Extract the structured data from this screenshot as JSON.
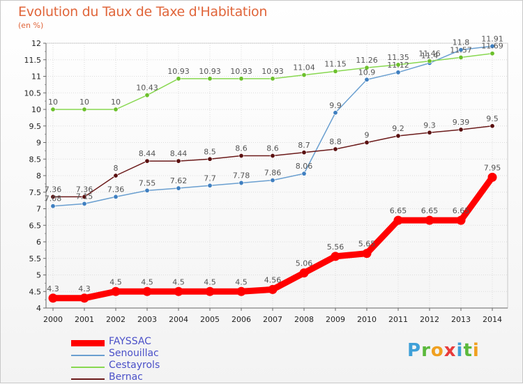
{
  "title": "Evolution du Taux de Taxe d'Habitation",
  "unit_label": "(en %)",
  "logo": {
    "text": "Proxiti",
    "letters": [
      {
        "ch": "P",
        "color": "#3fa0d8"
      },
      {
        "ch": "r",
        "color": "#5bb93c"
      },
      {
        "ch": "o",
        "color": "#f0a020"
      },
      {
        "ch": "x",
        "color": "#e83c3c"
      },
      {
        "ch": "i",
        "color": "#3fa0d8"
      },
      {
        "ch": "t",
        "color": "#5bb93c"
      },
      {
        "ch": "i",
        "color": "#f0a020"
      }
    ]
  },
  "chart_data": {
    "type": "line",
    "title": "Evolution du Taux de Taxe d'Habitation",
    "ylabel": "(en %)",
    "xlabel": "",
    "x": [
      "2000",
      "2001",
      "2002",
      "2003",
      "2004",
      "2005",
      "2006",
      "2007",
      "2008",
      "2009",
      "2010",
      "2011",
      "2012",
      "2013",
      "2014"
    ],
    "ylim": [
      4,
      12
    ],
    "y_ticks": [
      "4",
      "4.5",
      "5",
      "5.5",
      "6",
      "6.5",
      "7",
      "7.5",
      "8",
      "8.5",
      "9",
      "9.5",
      "10",
      "10.5",
      "11",
      "11.5",
      "12"
    ],
    "grid": true,
    "legend_position": "bottom-left",
    "series": [
      {
        "name": "FAYSSAC",
        "color": "#ff0000",
        "values": [
          4.3,
          4.3,
          4.5,
          4.5,
          4.5,
          4.5,
          4.5,
          4.56,
          5.06,
          5.56,
          5.65,
          6.65,
          6.65,
          6.65,
          7.95
        ],
        "labels": [
          "4.3",
          "4.3",
          "4.5",
          "4.5",
          "4.5",
          "4.5",
          "4.5",
          "4.56",
          "5.06",
          "5.56",
          "5.65",
          "6.65",
          "6.65",
          "6.65",
          "7.95"
        ]
      },
      {
        "name": "Senouillac",
        "color": "#6a9fd0",
        "values": [
          7.08,
          7.15,
          7.36,
          7.55,
          7.62,
          7.7,
          7.78,
          7.86,
          8.06,
          9.9,
          10.9,
          11.12,
          11.4,
          11.8,
          11.91
        ],
        "labels": [
          "7.08",
          "7.15",
          "7.36",
          "7.55",
          "7.62",
          "7.7",
          "7.78",
          "7.86",
          "8.06",
          "9.9",
          "10.9",
          "11.12",
          "11.4",
          "11.8",
          "11.91"
        ]
      },
      {
        "name": "Cestayrols",
        "color": "#88d850",
        "values": [
          10,
          10,
          10,
          10.43,
          10.93,
          10.93,
          10.93,
          10.93,
          11.04,
          11.15,
          11.26,
          11.35,
          11.46,
          11.57,
          11.69
        ],
        "labels": [
          "10",
          "10",
          "10",
          "10.43",
          "10.93",
          "10.93",
          "10.93",
          "10.93",
          "11.04",
          "11.15",
          "11.26",
          "11.35",
          "11.46",
          "11.57",
          "11.69"
        ]
      },
      {
        "name": "Bernac",
        "color": "#6b1a1a",
        "values": [
          7.36,
          7.36,
          8,
          8.44,
          8.44,
          8.5,
          8.6,
          8.6,
          8.7,
          8.8,
          9,
          9.2,
          9.3,
          9.39,
          9.5
        ],
        "labels": [
          "7.36",
          "7.36",
          "8",
          "8.44",
          "8.44",
          "8.5",
          "8.6",
          "8.6",
          "8.7",
          "8.8",
          "9",
          "9.2",
          "9.3",
          "9.39",
          "9.5"
        ]
      }
    ]
  }
}
